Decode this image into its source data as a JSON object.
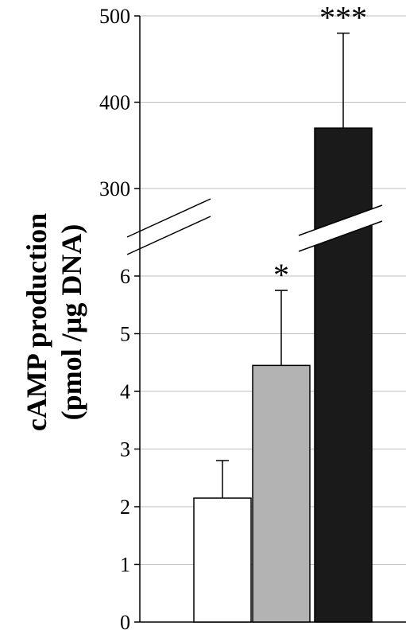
{
  "chart_data": {
    "type": "bar",
    "title": "",
    "xlabel": "",
    "ylabel_line1": "cAMP production",
    "ylabel_line2": "(pmol /µg DNA)",
    "y_axis_break": true,
    "lower_segment": {
      "ylim": [
        0,
        6
      ],
      "ticks": [
        "0",
        "1",
        "2",
        "3",
        "4",
        "5",
        "6"
      ]
    },
    "upper_segment": {
      "ylim": [
        300,
        500
      ],
      "ticks": [
        "300",
        "400",
        "500"
      ]
    },
    "grid": true,
    "bars": [
      {
        "value": 2.15,
        "error": 0.65,
        "color": "#ffffff",
        "significance": ""
      },
      {
        "value": 4.45,
        "error": 1.3,
        "color": "#b3b3b3",
        "significance": "*"
      },
      {
        "value": 370,
        "error": 110,
        "color": "#1a1a1a",
        "significance": "***"
      }
    ]
  }
}
